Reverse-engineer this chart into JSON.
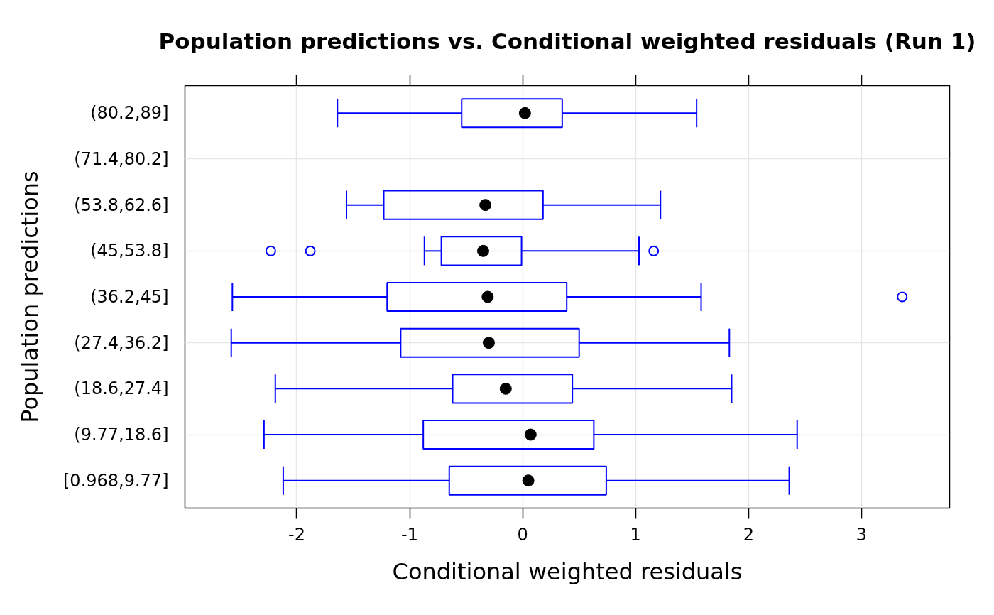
{
  "chart_data": {
    "type": "box",
    "orientation": "horizontal",
    "title": "Population predictions vs. Conditional weighted residuals (Run 1)",
    "xlabel": "Conditional weighted residuals",
    "ylabel": "Population predictions",
    "categories": [
      "(80.2,89]",
      "(71.4,80.2]",
      "(53.8,62.6]",
      "(45,53.8]",
      "(36.2,45]",
      "(27.4,36.2]",
      "(18.6,27.4]",
      "(9.77,18.6]",
      "[0.968,9.77]"
    ],
    "series": [
      {
        "color": "#0000ff",
        "boxes": [
          {
            "low": -1.64,
            "q1": -0.54,
            "median": 0.02,
            "q3": 0.35,
            "high": 1.54
          },
          null,
          {
            "low": -1.56,
            "q1": -1.23,
            "median": -0.33,
            "q3": 0.18,
            "high": 1.22
          },
          {
            "low": -0.87,
            "q1": -0.72,
            "median": -0.35,
            "q3": -0.01,
            "high": 1.03,
            "outliers": [
              -2.23,
              -1.88,
              1.16
            ]
          },
          {
            "low": -2.57,
            "q1": -1.2,
            "median": -0.31,
            "q3": 0.39,
            "high": 1.58,
            "outliers": [
              3.36
            ]
          },
          {
            "low": -2.58,
            "q1": -1.08,
            "median": -0.3,
            "q3": 0.5,
            "high": 1.83
          },
          {
            "low": -2.19,
            "q1": -0.62,
            "median": -0.15,
            "q3": 0.44,
            "high": 1.85
          },
          {
            "low": -2.29,
            "q1": -0.88,
            "median": 0.07,
            "q3": 0.63,
            "high": 2.43
          },
          {
            "low": -2.12,
            "q1": -0.65,
            "median": 0.05,
            "q3": 0.74,
            "high": 2.36
          }
        ]
      }
    ],
    "xlim": [
      -2.99,
      3.78
    ],
    "xticks": [
      -2,
      -1,
      0,
      1,
      2,
      3
    ],
    "grid": true
  }
}
